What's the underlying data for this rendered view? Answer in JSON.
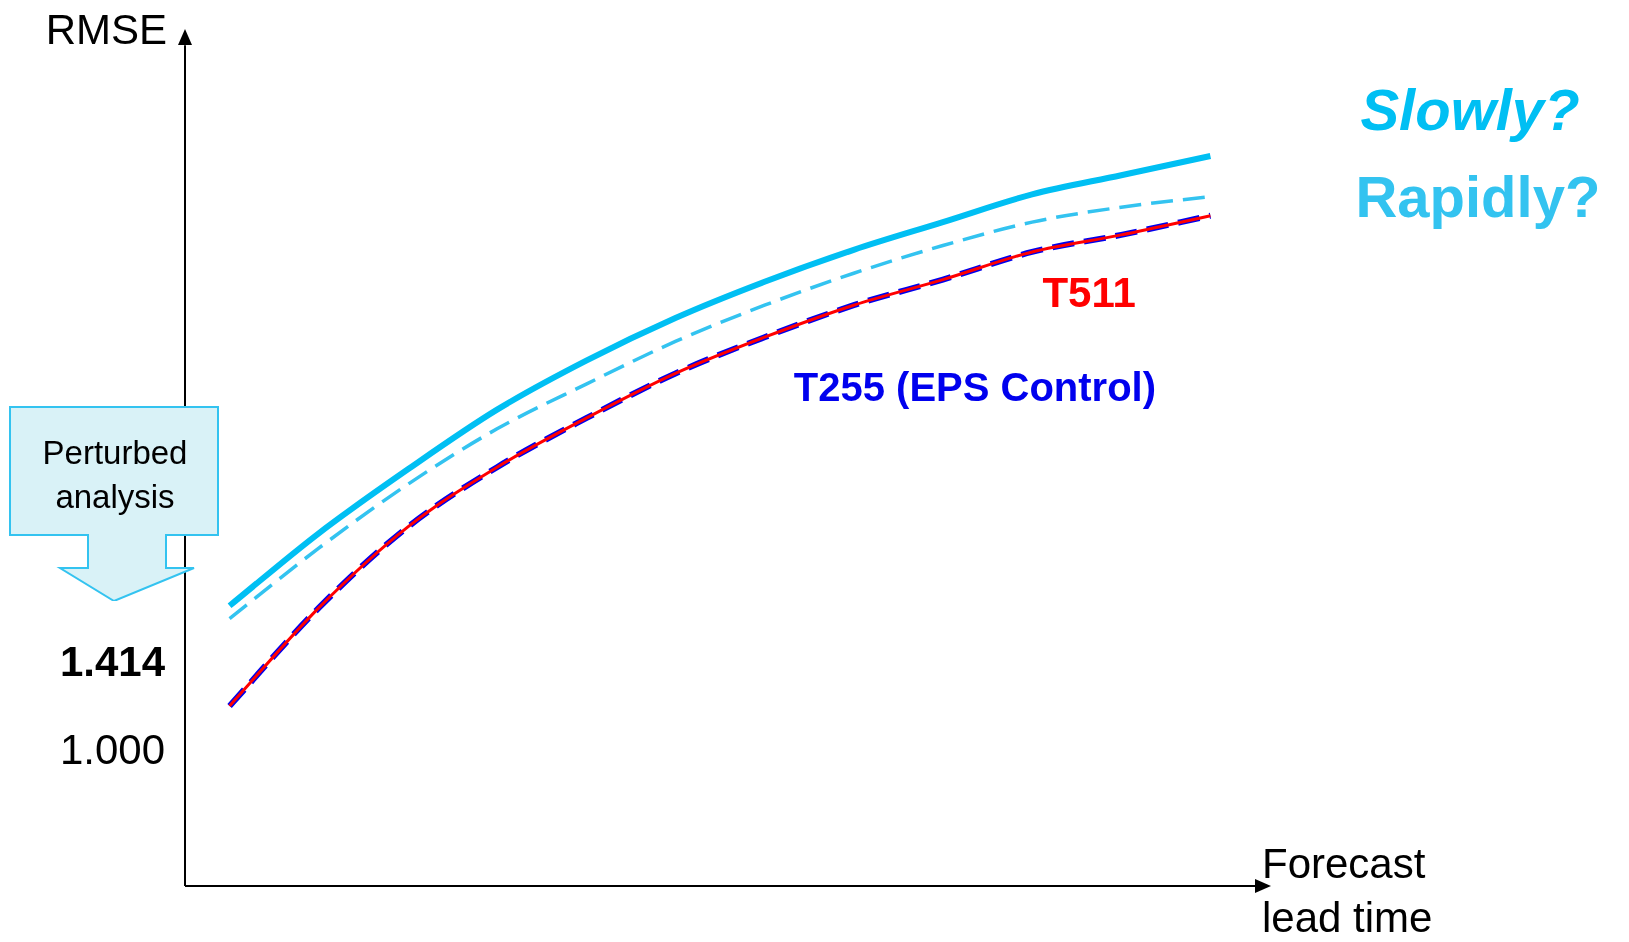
{
  "chart_data": {
    "type": "line",
    "ylabel": "RMSE",
    "xlabel": "Forecast lead time",
    "categories": [
      null,
      null,
      null,
      null,
      null,
      null,
      null,
      null,
      null,
      null,
      null,
      null
    ],
    "ylim": [
      0.375,
      4.32
    ],
    "yticks": [
      {
        "value": 1.0,
        "label": "1.000"
      },
      {
        "value": 1.414,
        "label": "1.414"
      }
    ],
    "tick_labels": "y",
    "grid": false,
    "legend": false,
    "marker": "none",
    "series": [
      {
        "name": "Slowly?",
        "color": "#00bff3",
        "line_style": "solid",
        "values": [
          1.69,
          2.03,
          2.33,
          2.61,
          2.84,
          3.04,
          3.21,
          3.36,
          3.49,
          3.62,
          3.71,
          3.8
        ]
      },
      {
        "name": "Rapidly?",
        "color": "#33c3f0",
        "line_style": "dashed",
        "values": [
          1.63,
          1.96,
          2.26,
          2.52,
          2.73,
          2.93,
          3.1,
          3.25,
          3.38,
          3.49,
          3.56,
          3.61
        ]
      },
      {
        "name": "T511",
        "color": "#ff0000",
        "line_style": "solid",
        "values": [
          1.22,
          1.68,
          2.06,
          2.34,
          2.57,
          2.78,
          2.95,
          3.1,
          3.22,
          3.35,
          3.43,
          3.52
        ]
      },
      {
        "name": "T255 (EPS Control)",
        "color": "#0000ee",
        "line_style": "dashed",
        "values": [
          1.22,
          1.68,
          2.06,
          2.34,
          2.57,
          2.78,
          2.95,
          3.1,
          3.22,
          3.35,
          3.43,
          3.52
        ]
      }
    ],
    "annotations": [
      "Perturbed analysis"
    ]
  }
}
